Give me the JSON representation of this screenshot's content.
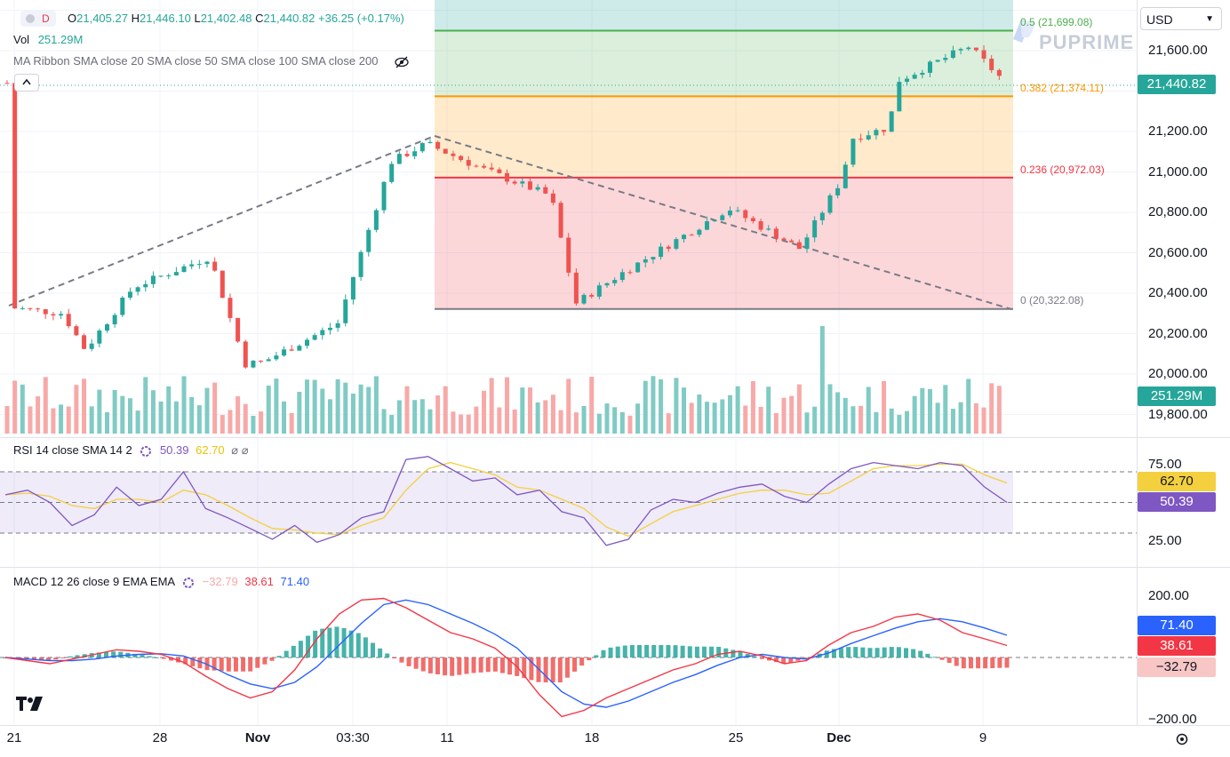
{
  "header": {
    "interval": "D",
    "ohlc": {
      "open_label": "O",
      "open": "21,405.27",
      "high_label": "H",
      "high": "21,446.10",
      "low_label": "L",
      "low": "21,402.48",
      "close_label": "C",
      "close": "21,440.82",
      "change": "+36.25 (+0.17%)"
    },
    "vol_label": "Vol",
    "vol_value": "251.29M",
    "ma_ribbon": "MA Ribbon SMA close 20 SMA close 50 SMA close 100 SMA close 200",
    "collapse_icon": "chevron-up-icon",
    "hide_icon": "eye-off-icon"
  },
  "currency": "USD",
  "watermark": "PUPRIME",
  "colors": {
    "up": "#26a69a",
    "down": "#ef5350",
    "vol_up": "#80cbc4",
    "vol_down": "#f7a9a7",
    "rsi": "#7e57c2",
    "rsi_ma": "#f4d03f",
    "macd": "#2962ff",
    "signal": "#f23645",
    "fib_05": "#4caf50",
    "fib_0382": "#ff9800",
    "fib_0236": "#f23645",
    "fib_0": "#787b86"
  },
  "price_axis": [
    "21,600.00",
    "21,200.00",
    "21,000.00",
    "20,800.00",
    "20,600.00",
    "20,400.00",
    "20,200.00",
    "20,000.00",
    "19,800.00"
  ],
  "price_badges": {
    "last": "21,440.82",
    "volume": "251.29M"
  },
  "fib": [
    {
      "level": "0.5",
      "price": "21,699.08",
      "text": "0.5 (21,699.08)"
    },
    {
      "level": "0.382",
      "price": "21,374.11",
      "text": "0.382 (21,374.11)"
    },
    {
      "level": "0.236",
      "price": "20,972.03",
      "text": "0.236 (20,972.03)"
    },
    {
      "level": "0",
      "price": "20,322.08",
      "text": "0 (20,322.08)"
    }
  ],
  "rsi": {
    "label": "RSI 14 close SMA 14 2",
    "value": "50.39",
    "ma_value": "62.70",
    "axis": [
      "75.00",
      "25.00"
    ],
    "badge_value": "50.39",
    "badge_ma": "62.70"
  },
  "macd": {
    "label": "MACD 12 26 close 9 EMA EMA",
    "hist": "−32.79",
    "macd": "38.61",
    "signal": "71.40",
    "axis": [
      "200.00",
      "−200.00"
    ],
    "badge_signal": "71.40",
    "badge_macd": "38.61",
    "badge_hist": "−32.79"
  },
  "x_axis": [
    "21",
    "28",
    "Nov",
    "03:30",
    "11",
    "18",
    "25",
    "Dec",
    "9"
  ],
  "chart_data": [
    {
      "type": "candlestick",
      "title": "",
      "y_unit": "USD",
      "ylim": [
        19720,
        21780
      ],
      "last": {
        "open": 21405.27,
        "high": 21446.1,
        "low": 21402.48,
        "close": 21440.82,
        "change": 36.25,
        "change_pct": 0.17,
        "volume": "251.29M"
      },
      "approx_close_path": [
        {
          "x": "Oct 21",
          "y": 20330
        },
        {
          "x": "Oct 24",
          "y": 20300
        },
        {
          "x": "Oct 25",
          "y": 20120
        },
        {
          "x": "Oct 28",
          "y": 20430
        },
        {
          "x": "Oct 31",
          "y": 20580
        },
        {
          "x": "Nov 1",
          "y": 20050
        },
        {
          "x": "Nov 4",
          "y": 20060
        },
        {
          "x": "Nov 6",
          "y": 20250
        },
        {
          "x": "Nov 7",
          "y": 21050
        },
        {
          "x": "Nov 8",
          "y": 21140
        },
        {
          "x": "Nov 13",
          "y": 21020
        },
        {
          "x": "Nov 15",
          "y": 20880
        },
        {
          "x": "Nov 18",
          "y": 20350
        },
        {
          "x": "Nov 21",
          "y": 20500
        },
        {
          "x": "Nov 25",
          "y": 20820
        },
        {
          "x": "Nov 27",
          "y": 20620
        },
        {
          "x": "Dec 1",
          "y": 20950
        },
        {
          "x": "Dec 2",
          "y": 21170
        },
        {
          "x": "Dec 4",
          "y": 21220
        },
        {
          "x": "Dec 5",
          "y": 21450
        },
        {
          "x": "Dec 7",
          "y": 21620
        },
        {
          "x": "Dec 9",
          "y": 21440
        }
      ],
      "fib_levels": [
        {
          "level": 0.5,
          "price": 21699.08
        },
        {
          "level": 0.382,
          "price": 21374.11
        },
        {
          "level": 0.236,
          "price": 20972.03
        },
        {
          "level": 0,
          "price": 20322.08
        }
      ],
      "grid": true,
      "legend": "top-left"
    },
    {
      "type": "line",
      "title": "",
      "ylim": [
        15,
        85
      ],
      "series": [
        {
          "name": "RSI",
          "values": [
            55,
            58,
            50,
            35,
            42,
            60,
            48,
            52,
            70,
            46,
            40,
            33,
            26,
            35,
            24,
            29,
            40,
            44,
            78,
            80,
            72,
            64,
            66,
            55,
            58,
            44,
            40,
            22,
            26,
            45,
            52,
            50,
            56,
            60,
            62,
            54,
            50,
            62,
            72,
            76,
            74,
            72,
            76,
            74,
            60,
            50
          ]
        },
        {
          "name": "MA",
          "values": [
            55,
            56,
            54,
            48,
            46,
            52,
            52,
            50,
            58,
            55,
            48,
            40,
            33,
            32,
            30,
            29,
            35,
            40,
            58,
            72,
            76,
            72,
            68,
            60,
            58,
            52,
            46,
            34,
            28,
            36,
            44,
            48,
            52,
            56,
            58,
            58,
            55,
            56,
            64,
            72,
            74,
            74,
            75,
            75,
            68,
            62.7
          ]
        }
      ],
      "bands": [
        30,
        70
      ],
      "grid": true
    },
    {
      "type": "line",
      "title": "",
      "ylim": [
        -240,
        240
      ],
      "series": [
        {
          "name": "MACD",
          "values": [
            0,
            -10,
            -20,
            -5,
            10,
            25,
            20,
            10,
            -15,
            -60,
            -100,
            -130,
            -110,
            -40,
            60,
            140,
            185,
            190,
            160,
            120,
            80,
            60,
            30,
            -30,
            -120,
            -190,
            -170,
            -130,
            -100,
            -70,
            -40,
            -20,
            10,
            20,
            5,
            -20,
            -10,
            40,
            80,
            100,
            130,
            140,
            120,
            80,
            60,
            38.61
          ]
        },
        {
          "name": "Signal",
          "values": [
            0,
            -5,
            -10,
            -10,
            -5,
            5,
            10,
            12,
            5,
            -20,
            -55,
            -85,
            -100,
            -80,
            -30,
            40,
            110,
            170,
            185,
            170,
            140,
            110,
            75,
            30,
            -40,
            -110,
            -150,
            -160,
            -140,
            -110,
            -80,
            -55,
            -25,
            0,
            10,
            0,
            -5,
            15,
            45,
            70,
            95,
            115,
            125,
            115,
            95,
            71.4
          ]
        }
      ],
      "grid": true
    }
  ]
}
